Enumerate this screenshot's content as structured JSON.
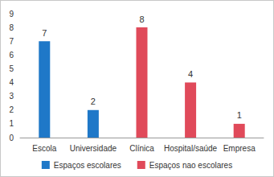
{
  "chart_data": {
    "type": "bar",
    "categories": [
      "Escola",
      "Universidade",
      "Clínica",
      "Hospital/saúde",
      "Empresa"
    ],
    "series": [
      {
        "name": "Espaços escolares",
        "color": "#1f78c8",
        "values": [
          7,
          2,
          null,
          null,
          null
        ]
      },
      {
        "name": "Espaços nao escolares",
        "color": "#e04a5a",
        "values": [
          null,
          null,
          8,
          4,
          1
        ]
      }
    ],
    "ylim": [
      0,
      9
    ],
    "yticks": [
      0,
      1,
      2,
      3,
      4,
      5,
      6,
      7,
      8,
      9
    ],
    "grid": false,
    "legend": "bottom",
    "data_labels": true
  }
}
